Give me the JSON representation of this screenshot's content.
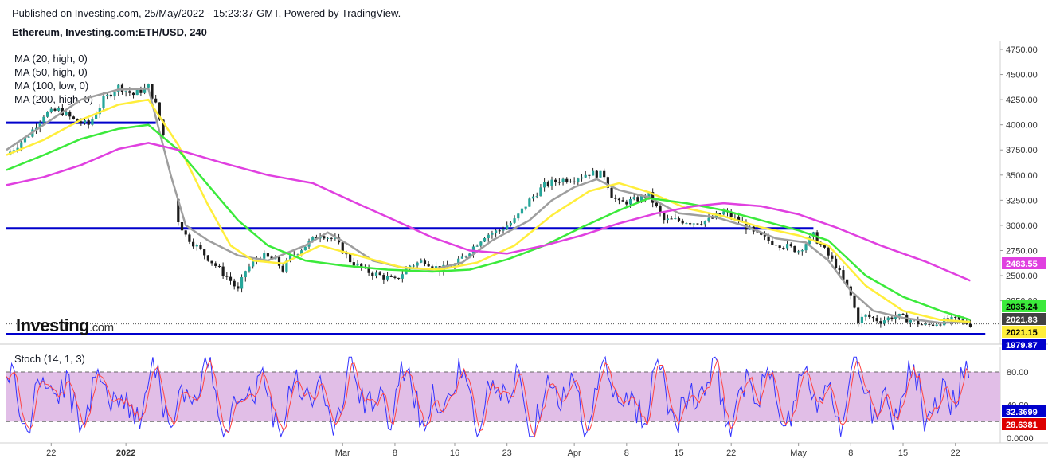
{
  "header": {
    "published": "Published on Investing.com, 25/May/2022 - 15:23:37 GMT, Powered by TradingView.",
    "symbol": "Ethereum, Investing.com:ETH/USD, 240"
  },
  "indicators": {
    "ma": [
      {
        "label": "MA (20, high, 0)",
        "color": "#9e9e9e"
      },
      {
        "label": "MA (50, high, 0)",
        "color": "#ffee3b"
      },
      {
        "label": "MA (100, low, 0)",
        "color": "#3bea3b"
      },
      {
        "label": "MA (200, high, 0)",
        "color": "#e040e0"
      }
    ],
    "stoch_label": "Stoch (14, 1, 3)"
  },
  "logo": {
    "brand": "Investing",
    "suffix": ".com"
  },
  "colors": {
    "up": "#26a69a",
    "down": "#ef5350",
    "candle_body_dark": "#1b1b1b",
    "support_line": "#0000cc",
    "stoch_fill": "#e1bee7",
    "stoch_k": "#3333ff",
    "stoch_d": "#ff4444"
  },
  "chart_data": [
    {
      "type": "candlestick",
      "title": "Ethereum, Investing.com:ETH/USD, 240",
      "ylim": [
        1930,
        4800
      ],
      "y_ticks": [
        "4750.00",
        "4500.00",
        "4250.00",
        "4000.00",
        "3750.00",
        "3500.00",
        "3250.00",
        "3000.00",
        "2750.00",
        "2500.00",
        "2250.00"
      ],
      "y_tick_values": [
        4750,
        4500,
        4250,
        4000,
        3750,
        3500,
        3250,
        3000,
        2750,
        2500,
        2250
      ],
      "x_ticks": [
        "22",
        "2022",
        "Mar",
        "8",
        "16",
        "23",
        "Apr",
        "8",
        "15",
        "22",
        "May",
        "8",
        "15",
        "22"
      ],
      "x_tick_days": [
        -39,
        -29,
        0,
        7,
        15,
        22,
        31,
        38,
        45,
        52,
        61,
        68,
        75,
        82
      ],
      "close_points": [
        [
          -45,
          3700
        ],
        [
          -42,
          3900
        ],
        [
          -40,
          4100
        ],
        [
          -38,
          4150
        ],
        [
          -36,
          4050
        ],
        [
          -34,
          4000
        ],
        [
          -32,
          4250
        ],
        [
          -30,
          4380
        ],
        [
          -28,
          4300
        ],
        [
          -26,
          4380
        ],
        [
          -25,
          4200
        ],
        [
          -24,
          3900
        ],
        [
          -22,
          3050
        ],
        [
          -21,
          2900
        ],
        [
          -19,
          2750
        ],
        [
          -17,
          2600
        ],
        [
          -15,
          2450
        ],
        [
          -14,
          2350
        ],
        [
          -13,
          2550
        ],
        [
          -11,
          2700
        ],
        [
          -9,
          2650
        ],
        [
          -8,
          2560
        ],
        [
          -7,
          2680
        ],
        [
          -5,
          2800
        ],
        [
          -3,
          2920
        ],
        [
          -1,
          2850
        ],
        [
          1,
          2650
        ],
        [
          3,
          2550
        ],
        [
          5,
          2500
        ],
        [
          7,
          2450
        ],
        [
          9,
          2600
        ],
        [
          11,
          2650
        ],
        [
          13,
          2560
        ],
        [
          15,
          2600
        ],
        [
          17,
          2750
        ],
        [
          19,
          2900
        ],
        [
          21,
          2950
        ],
        [
          23,
          3050
        ],
        [
          25,
          3250
        ],
        [
          27,
          3400
        ],
        [
          29,
          3450
        ],
        [
          31,
          3470
        ],
        [
          33,
          3520
        ],
        [
          35,
          3500
        ],
        [
          36,
          3300
        ],
        [
          37,
          3220
        ],
        [
          39,
          3250
        ],
        [
          41,
          3300
        ],
        [
          43,
          3050
        ],
        [
          45,
          3050
        ],
        [
          47,
          3030
        ],
        [
          49,
          3050
        ],
        [
          51,
          3130
        ],
        [
          53,
          3050
        ],
        [
          55,
          2920
        ],
        [
          57,
          2850
        ],
        [
          59,
          2800
        ],
        [
          61,
          2750
        ],
        [
          63,
          2900
        ],
        [
          65,
          2700
        ],
        [
          66,
          2600
        ],
        [
          67,
          2450
        ],
        [
          68,
          2300
        ],
        [
          69,
          2050
        ],
        [
          70,
          2100
        ],
        [
          72,
          2050
        ],
        [
          74,
          2100
        ],
        [
          76,
          2060
        ],
        [
          78,
          2000
        ],
        [
          80,
          2040
        ],
        [
          82,
          2060
        ],
        [
          84,
          2020
        ]
      ],
      "moving_averages": [
        {
          "name": "MA (20, high, 0)",
          "points": [
            [
              -45,
              3750
            ],
            [
              -40,
              4000
            ],
            [
              -35,
              4250
            ],
            [
              -30,
              4350
            ],
            [
              -26,
              4360
            ],
            [
              -23,
              3500
            ],
            [
              -21,
              3000
            ],
            [
              -18,
              2850
            ],
            [
              -14,
              2700
            ],
            [
              -10,
              2650
            ],
            [
              -5,
              2800
            ],
            [
              -2,
              2930
            ],
            [
              1,
              2800
            ],
            [
              4,
              2650
            ],
            [
              8,
              2580
            ],
            [
              12,
              2560
            ],
            [
              16,
              2630
            ],
            [
              20,
              2850
            ],
            [
              25,
              3050
            ],
            [
              28,
              3250
            ],
            [
              31,
              3380
            ],
            [
              34,
              3460
            ],
            [
              37,
              3350
            ],
            [
              41,
              3280
            ],
            [
              45,
              3120
            ],
            [
              50,
              3080
            ],
            [
              54,
              2990
            ],
            [
              58,
              2870
            ],
            [
              62,
              2830
            ],
            [
              65,
              2650
            ],
            [
              68,
              2350
            ],
            [
              71,
              2150
            ],
            [
              75,
              2080
            ],
            [
              80,
              2030
            ],
            [
              84,
              2040
            ]
          ]
        },
        {
          "name": "MA (50, high, 0)",
          "points": [
            [
              -45,
              3700
            ],
            [
              -40,
              3850
            ],
            [
              -35,
              4050
            ],
            [
              -30,
              4200
            ],
            [
              -26,
              4250
            ],
            [
              -22,
              3800
            ],
            [
              -18,
              3200
            ],
            [
              -15,
              2800
            ],
            [
              -12,
              2650
            ],
            [
              -8,
              2620
            ],
            [
              -3,
              2800
            ],
            [
              2,
              2700
            ],
            [
              8,
              2580
            ],
            [
              13,
              2560
            ],
            [
              18,
              2630
            ],
            [
              23,
              2800
            ],
            [
              28,
              3100
            ],
            [
              33,
              3340
            ],
            [
              37,
              3420
            ],
            [
              41,
              3330
            ],
            [
              46,
              3170
            ],
            [
              51,
              3090
            ],
            [
              56,
              2980
            ],
            [
              61,
              2900
            ],
            [
              65,
              2800
            ],
            [
              70,
              2400
            ],
            [
              75,
              2150
            ],
            [
              80,
              2060
            ],
            [
              84,
              2040
            ]
          ]
        },
        {
          "name": "MA (100, low, 0)",
          "points": [
            [
              -45,
              3550
            ],
            [
              -40,
              3700
            ],
            [
              -35,
              3860
            ],
            [
              -30,
              3960
            ],
            [
              -26,
              4000
            ],
            [
              -22,
              3750
            ],
            [
              -18,
              3400
            ],
            [
              -14,
              3050
            ],
            [
              -10,
              2800
            ],
            [
              -5,
              2650
            ],
            [
              0,
              2600
            ],
            [
              6,
              2560
            ],
            [
              12,
              2540
            ],
            [
              17,
              2560
            ],
            [
              22,
              2660
            ],
            [
              27,
              2800
            ],
            [
              32,
              2980
            ],
            [
              37,
              3150
            ],
            [
              41,
              3270
            ],
            [
              46,
              3220
            ],
            [
              51,
              3150
            ],
            [
              56,
              3050
            ],
            [
              61,
              2950
            ],
            [
              65,
              2850
            ],
            [
              70,
              2500
            ],
            [
              75,
              2290
            ],
            [
              80,
              2150
            ],
            [
              84,
              2060
            ]
          ]
        },
        {
          "name": "MA (200, high, 0)",
          "points": [
            [
              -45,
              3400
            ],
            [
              -40,
              3480
            ],
            [
              -35,
              3600
            ],
            [
              -30,
              3760
            ],
            [
              -26,
              3820
            ],
            [
              -22,
              3750
            ],
            [
              -16,
              3620
            ],
            [
              -10,
              3500
            ],
            [
              -4,
              3420
            ],
            [
              1,
              3250
            ],
            [
              7,
              3050
            ],
            [
              12,
              2880
            ],
            [
              17,
              2750
            ],
            [
              22,
              2720
            ],
            [
              27,
              2800
            ],
            [
              32,
              2900
            ],
            [
              37,
              3020
            ],
            [
              42,
              3120
            ],
            [
              47,
              3190
            ],
            [
              51,
              3220
            ],
            [
              56,
              3190
            ],
            [
              61,
              3110
            ],
            [
              66,
              2980
            ],
            [
              72,
              2800
            ],
            [
              78,
              2640
            ],
            [
              84,
              2450
            ]
          ]
        }
      ],
      "support_lines": [
        {
          "y": 4020,
          "x_range": [
            -45,
            -25
          ]
        },
        {
          "y": 2970,
          "x_range": [
            -45,
            63
          ]
        },
        {
          "y": 1918,
          "x_range": [
            -45,
            86
          ]
        }
      ],
      "price_labels": [
        {
          "value": "2483.55",
          "bg": "#e040e0",
          "fg": "#ffffff"
        },
        {
          "value": "2035.24",
          "bg": "#3bea3b",
          "fg": "#000000"
        },
        {
          "value": "2021.83",
          "bg": "#424242",
          "fg": "#ffffff"
        },
        {
          "value": "2021.15",
          "bg": "#ffee3b",
          "fg": "#000000"
        },
        {
          "value": "1979.87",
          "bg": "#0000cc",
          "fg": "#ffffff"
        }
      ]
    },
    {
      "type": "line",
      "title": "Stoch (14, 1, 3)",
      "ylim": [
        0,
        100
      ],
      "y_ticks": [
        "80.00",
        "40.00",
        "0.0000"
      ],
      "y_tick_values": [
        80,
        40,
        0
      ],
      "band": [
        20,
        80
      ],
      "k_last": "32.3699",
      "d_last": "28.6381",
      "k_color": "#3333ff",
      "d_color": "#ff4444"
    }
  ]
}
